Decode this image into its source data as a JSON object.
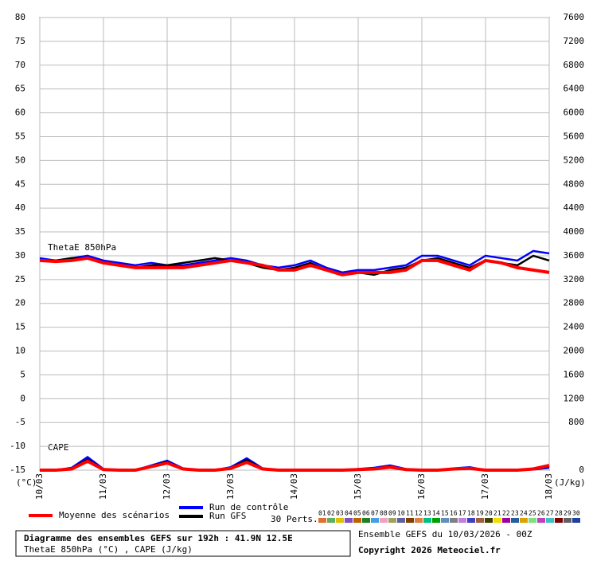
{
  "chart_data": {
    "type": "line",
    "y_label": "(°C)",
    "y2_label": "(J/kg)",
    "theta_label": "ThetaE 850hPa",
    "cape_label": "CAPE",
    "x": [
      0,
      6,
      12,
      18,
      24,
      30,
      36,
      42,
      48,
      54,
      60,
      66,
      72,
      78,
      84,
      90,
      96,
      102,
      108,
      114,
      120,
      126,
      132,
      138,
      144,
      150,
      156,
      162,
      168,
      174,
      180,
      186,
      192
    ],
    "xlim": [
      0,
      192
    ],
    "xticks": [
      {
        "value": 0,
        "label": "10/03"
      },
      {
        "value": 24,
        "label": "11/03"
      },
      {
        "value": 48,
        "label": "12/03"
      },
      {
        "value": 72,
        "label": "13/03"
      },
      {
        "value": 96,
        "label": "14/03"
      },
      {
        "value": 120,
        "label": "15/03"
      },
      {
        "value": 144,
        "label": "16/03"
      },
      {
        "value": 168,
        "label": "17/03"
      },
      {
        "value": 192,
        "label": "18/03"
      }
    ],
    "ylim": [
      -15,
      80
    ],
    "yticks": [
      -15,
      -10,
      -5,
      0,
      5,
      10,
      15,
      20,
      25,
      30,
      35,
      40,
      45,
      50,
      55,
      60,
      65,
      70,
      75,
      80
    ],
    "y2lim": [
      0,
      7600
    ],
    "y2ticks": [
      0,
      800,
      1200,
      1600,
      2000,
      2400,
      2800,
      3200,
      3600,
      4000,
      4400,
      4800,
      5200,
      5600,
      6000,
      6400,
      6800,
      7200,
      7600
    ],
    "grid": true,
    "series": [
      {
        "name": "Moyenne des scénarios",
        "color": "#ff0000",
        "values": [
          29,
          28.8,
          29,
          29.5,
          28.5,
          28,
          27.5,
          27.5,
          27.5,
          27.5,
          28,
          28.5,
          29,
          28.5,
          28,
          27,
          27,
          28,
          27,
          26,
          26.5,
          26.5,
          26.5,
          27,
          29,
          29,
          28,
          27,
          29,
          28.5,
          27.5,
          27,
          26.5
        ]
      },
      {
        "name": "Run de contrôle",
        "color": "#0000ff",
        "values": [
          29.5,
          29,
          29.5,
          30,
          29,
          28.5,
          28,
          28.5,
          28,
          28,
          28.5,
          29,
          29.5,
          29,
          28,
          27.5,
          28,
          29,
          27.5,
          26.5,
          27,
          27,
          27.5,
          28,
          30,
          30,
          29,
          28,
          30,
          29.5,
          29,
          31,
          30.5
        ]
      },
      {
        "name": "Run GFS",
        "color": "#000000",
        "values": [
          29,
          29,
          29.5,
          29.5,
          28.5,
          28,
          27.5,
          28,
          28,
          28.5,
          29,
          29.5,
          29,
          28.5,
          27.5,
          27,
          27.5,
          28.5,
          27,
          26,
          26.5,
          26,
          27,
          27.5,
          29,
          29.5,
          28.5,
          27.5,
          29,
          28.5,
          28,
          30,
          29
        ]
      },
      {
        "axis": "y2",
        "color": "#ff0000",
        "values": [
          0,
          0,
          20,
          150,
          10,
          0,
          0,
          60,
          120,
          20,
          0,
          0,
          30,
          130,
          20,
          0,
          0,
          0,
          0,
          0,
          10,
          20,
          50,
          10,
          0,
          0,
          20,
          30,
          0,
          0,
          0,
          20,
          80
        ]
      },
      {
        "axis": "y2",
        "color": "#0000ff",
        "values": [
          0,
          0,
          40,
          220,
          20,
          0,
          0,
          80,
          160,
          30,
          0,
          0,
          50,
          200,
          30,
          0,
          0,
          10,
          0,
          0,
          20,
          40,
          80,
          20,
          0,
          0,
          30,
          50,
          0,
          0,
          0,
          10,
          40
        ]
      },
      {
        "axis": "y2",
        "color": "#000000",
        "values": [
          0,
          0,
          30,
          180,
          10,
          0,
          0,
          70,
          140,
          20,
          0,
          0,
          40,
          170,
          20,
          0,
          0,
          0,
          0,
          0,
          10,
          30,
          60,
          10,
          0,
          0,
          20,
          40,
          0,
          0,
          0,
          20,
          60
        ]
      }
    ],
    "perts_label": "30 Perts.",
    "perturbations": [
      {
        "name": "01",
        "color": "#e07030"
      },
      {
        "name": "02",
        "color": "#60b060"
      },
      {
        "name": "03",
        "color": "#e0c000"
      },
      {
        "name": "04",
        "color": "#8050c0"
      },
      {
        "name": "05",
        "color": "#c06000"
      },
      {
        "name": "06",
        "color": "#208020"
      },
      {
        "name": "07",
        "color": "#40a0e0"
      },
      {
        "name": "08",
        "color": "#f0a0c0"
      },
      {
        "name": "09",
        "color": "#a0a060"
      },
      {
        "name": "10",
        "color": "#6060a0"
      },
      {
        "name": "11",
        "color": "#804000"
      },
      {
        "name": "12",
        "color": "#e08040"
      },
      {
        "name": "13",
        "color": "#00c080"
      },
      {
        "name": "14",
        "color": "#00a000"
      },
      {
        "name": "15",
        "color": "#6090c0"
      },
      {
        "name": "16",
        "color": "#808080"
      },
      {
        "name": "17",
        "color": "#c080e0"
      },
      {
        "name": "18",
        "color": "#4040c0"
      },
      {
        "name": "19",
        "color": "#a06040"
      },
      {
        "name": "20",
        "color": "#404000"
      },
      {
        "name": "21",
        "color": "#f0e000"
      },
      {
        "name": "22",
        "color": "#a000a0"
      },
      {
        "name": "23",
        "color": "#2060a0"
      },
      {
        "name": "24",
        "color": "#e0a000"
      },
      {
        "name": "25",
        "color": "#80e080"
      },
      {
        "name": "26",
        "color": "#c040c0"
      },
      {
        "name": "27",
        "color": "#40c0c0"
      },
      {
        "name": "28",
        "color": "#800000"
      },
      {
        "name": "29",
        "color": "#606060"
      },
      {
        "name": "30",
        "color": "#2040a0"
      }
    ],
    "footer": {
      "title": "Diagramme des ensembles GEFS sur 192h : 41.9N 12.5E",
      "subtitle": "ThetaE 850hPa (°C) , CAPE (J/kg)",
      "run": "Ensemble GEFS du 10/03/2026 - 00Z",
      "copyright": "Copyright 2026 Meteociel.fr"
    }
  }
}
